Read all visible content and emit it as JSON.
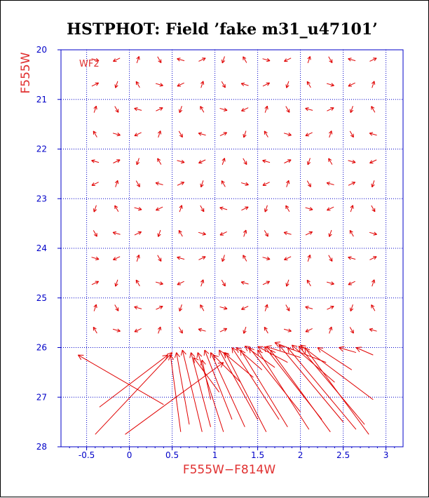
{
  "colors": {
    "axis": "#0000c8",
    "grid": "#0000c8",
    "data": "#e00000",
    "label": "#e03030",
    "title": "#000000",
    "background": "#ffffff"
  },
  "chart_data": {
    "type": "scatter",
    "variant": "vector-field",
    "title": "HSTPHOT: Field ’fake m31_u47101’",
    "xlabel": "F555W−F814W",
    "ylabel": "F555W",
    "panel_label": "WF2",
    "xlim": [
      -0.8,
      3.2
    ],
    "ylim": [
      28,
      20
    ],
    "y_inverted": true,
    "grid": true,
    "grid_style": "dotted",
    "xticks": [
      -0.5,
      0,
      0.5,
      1,
      1.5,
      2,
      2.5,
      3
    ],
    "xtick_labels": [
      "-0.5",
      "0",
      "0.5",
      "1",
      "1.5",
      "2",
      "2.5",
      "3"
    ],
    "yticks": [
      20,
      21,
      22,
      23,
      24,
      25,
      26,
      27,
      28
    ],
    "ytick_labels": [
      "20",
      "21",
      "22",
      "23",
      "24",
      "25",
      "26",
      "27",
      "28"
    ],
    "grid_columns": [
      -0.4,
      -0.15,
      0.1,
      0.35,
      0.6,
      0.85,
      1.1,
      1.35,
      1.6,
      1.85,
      2.1,
      2.35,
      2.6,
      2.85
    ],
    "grid_rows": [
      20.2,
      20.7,
      21.2,
      21.7,
      22.25,
      22.7,
      23.2,
      23.7,
      24.2,
      24.7,
      25.2,
      25.65
    ],
    "small_vector": {
      "dx": 0.045,
      "dy": 0.07
    },
    "long_vectors": [
      {
        "x0": -0.4,
        "y0": 27.75,
        "x1": 0.5,
        "y1": 26.1
      },
      {
        "x0": -0.35,
        "y0": 27.2,
        "x1": 0.45,
        "y1": 26.15
      },
      {
        "x0": -0.05,
        "y0": 27.75,
        "x1": 1.1,
        "y1": 26.3
      },
      {
        "x0": 0.4,
        "y0": 27.15,
        "x1": -0.6,
        "y1": 26.15
      },
      {
        "x0": 0.6,
        "y0": 27.7,
        "x1": 0.48,
        "y1": 26.15
      },
      {
        "x0": 0.7,
        "y0": 27.55,
        "x1": 0.55,
        "y1": 26.1
      },
      {
        "x0": 0.85,
        "y0": 27.7,
        "x1": 0.62,
        "y1": 26.05
      },
      {
        "x0": 0.95,
        "y0": 27.6,
        "x1": 0.72,
        "y1": 26.1
      },
      {
        "x0": 1.1,
        "y0": 27.7,
        "x1": 0.8,
        "y1": 26.1
      },
      {
        "x0": 1.2,
        "y0": 27.45,
        "x1": 0.88,
        "y1": 26.05
      },
      {
        "x0": 1.35,
        "y0": 27.6,
        "x1": 0.95,
        "y1": 26.1
      },
      {
        "x0": 1.5,
        "y0": 27.45,
        "x1": 1.05,
        "y1": 26.05
      },
      {
        "x0": 1.6,
        "y0": 27.7,
        "x1": 1.12,
        "y1": 26.1
      },
      {
        "x0": 1.75,
        "y0": 27.45,
        "x1": 1.2,
        "y1": 26.0
      },
      {
        "x0": 1.85,
        "y0": 27.6,
        "x1": 1.3,
        "y1": 26.05
      },
      {
        "x0": 2.0,
        "y0": 27.3,
        "x1": 1.4,
        "y1": 26.0
      },
      {
        "x0": 2.1,
        "y0": 27.65,
        "x1": 1.5,
        "y1": 26.05
      },
      {
        "x0": 2.25,
        "y0": 27.45,
        "x1": 1.58,
        "y1": 25.98
      },
      {
        "x0": 2.35,
        "y0": 27.7,
        "x1": 1.65,
        "y1": 26.05
      },
      {
        "x0": 2.5,
        "y0": 27.5,
        "x1": 1.75,
        "y1": 25.95
      },
      {
        "x0": 2.65,
        "y0": 27.65,
        "x1": 1.85,
        "y1": 26.0
      },
      {
        "x0": 2.75,
        "y0": 27.55,
        "x1": 1.98,
        "y1": 25.97
      },
      {
        "x0": 2.8,
        "y0": 27.75,
        "x1": 2.05,
        "y1": 26.0
      },
      {
        "x0": 2.85,
        "y0": 27.05,
        "x1": 2.0,
        "y1": 25.95
      },
      {
        "x0": 2.4,
        "y0": 26.7,
        "x1": 1.9,
        "y1": 25.95
      },
      {
        "x0": 2.6,
        "y0": 26.45,
        "x1": 2.2,
        "y1": 26.0
      },
      {
        "x0": 2.3,
        "y0": 26.3,
        "x1": 1.7,
        "y1": 25.9
      },
      {
        "x0": 2.0,
        "y0": 26.2,
        "x1": 1.6,
        "y1": 25.98
      },
      {
        "x0": 2.85,
        "y0": 26.15,
        "x1": 2.65,
        "y1": 26.0
      },
      {
        "x0": 2.65,
        "y0": 26.1,
        "x1": 2.45,
        "y1": 26.0
      },
      {
        "x0": 1.85,
        "y0": 26.3,
        "x1": 1.5,
        "y1": 25.98
      },
      {
        "x0": 1.7,
        "y0": 26.4,
        "x1": 1.35,
        "y1": 25.97
      },
      {
        "x0": 1.55,
        "y0": 26.45,
        "x1": 1.25,
        "y1": 26.0
      },
      {
        "x0": 1.45,
        "y0": 26.6,
        "x1": 1.1,
        "y1": 26.1
      },
      {
        "x0": 1.3,
        "y0": 26.7,
        "x1": 0.98,
        "y1": 26.15
      },
      {
        "x0": 1.05,
        "y0": 26.9,
        "x1": 0.75,
        "y1": 26.2
      },
      {
        "x0": 0.95,
        "y0": 27.05,
        "x1": 0.85,
        "y1": 26.25
      }
    ]
  }
}
